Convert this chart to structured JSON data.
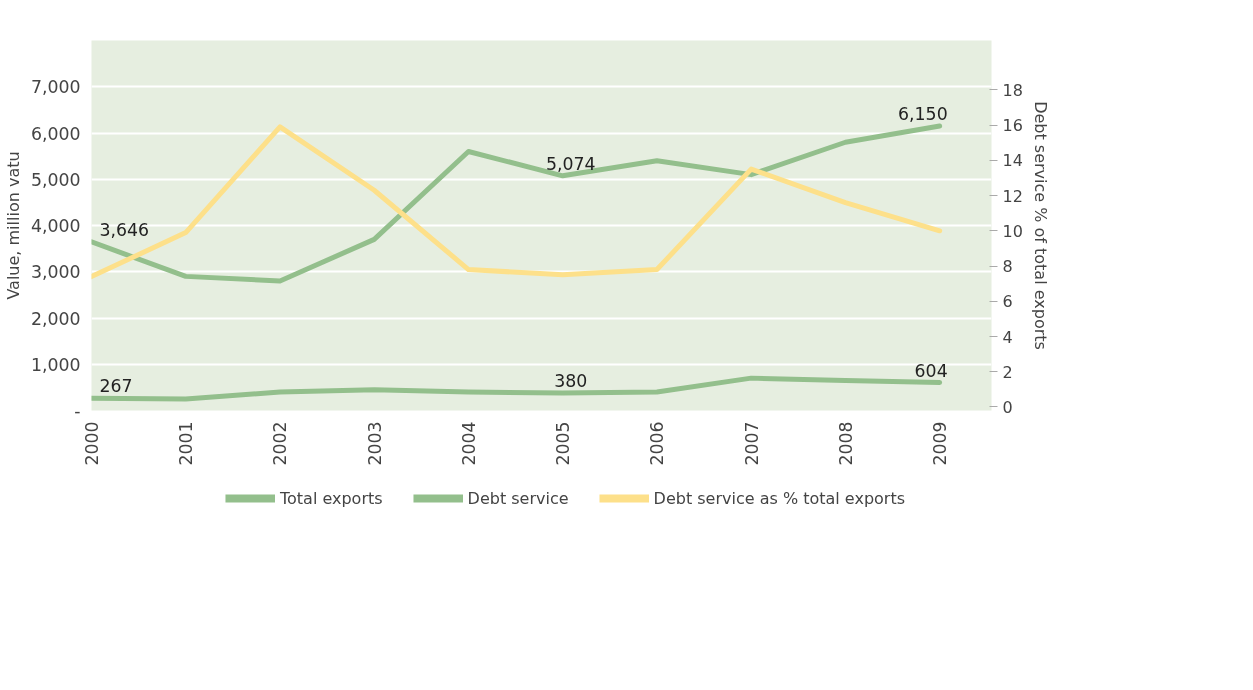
{
  "chart_data": {
    "type": "line",
    "categories": [
      "2000",
      "2001",
      "2002",
      "2003",
      "2004",
      "2005",
      "2006",
      "2007",
      "2008",
      "2009"
    ],
    "ylabel": "Value, million vatu",
    "y2label": "Debt service % of total exports",
    "ylim": [
      0,
      8000
    ],
    "yticks": [
      {
        "value": 0,
        "label": "-"
      },
      {
        "value": 1000,
        "label": "1,000"
      },
      {
        "value": 2000,
        "label": "2,000"
      },
      {
        "value": 3000,
        "label": "3,000"
      },
      {
        "value": 4000,
        "label": "4,000"
      },
      {
        "value": 5000,
        "label": "5,000"
      },
      {
        "value": 6000,
        "label": "6,000"
      },
      {
        "value": 7000,
        "label": "7,000"
      }
    ],
    "y2lim": [
      -0.2,
      20.8
    ],
    "y2ticks": [
      0,
      2,
      4,
      6,
      8,
      10,
      12,
      14,
      16,
      18
    ],
    "grid": "y",
    "legend": "bottom",
    "line_style": "solid",
    "series": [
      {
        "name": "Total exports",
        "color": "#93bf8c",
        "values": [
          3646,
          2900,
          2800,
          3700,
          5600,
          5074,
          5400,
          5100,
          5800,
          6150
        ],
        "value_labels": [
          "3,646",
          null,
          null,
          null,
          null,
          "5,074",
          null,
          null,
          null,
          "6,150"
        ]
      },
      {
        "name": "Debt service",
        "color": "#93bf8c",
        "values": [
          267,
          250,
          400,
          450,
          400,
          380,
          400,
          700,
          650,
          604
        ],
        "value_labels": [
          "267",
          null,
          null,
          null,
          null,
          "380",
          null,
          null,
          null,
          "604"
        ]
      },
      {
        "name": "Debt service as % total exports",
        "color": "#fde08a",
        "axis": "y2",
        "values": [
          7.4,
          9.9,
          15.9,
          12.3,
          7.8,
          7.5,
          7.8,
          13.5,
          11.6,
          10.0
        ]
      }
    ]
  }
}
